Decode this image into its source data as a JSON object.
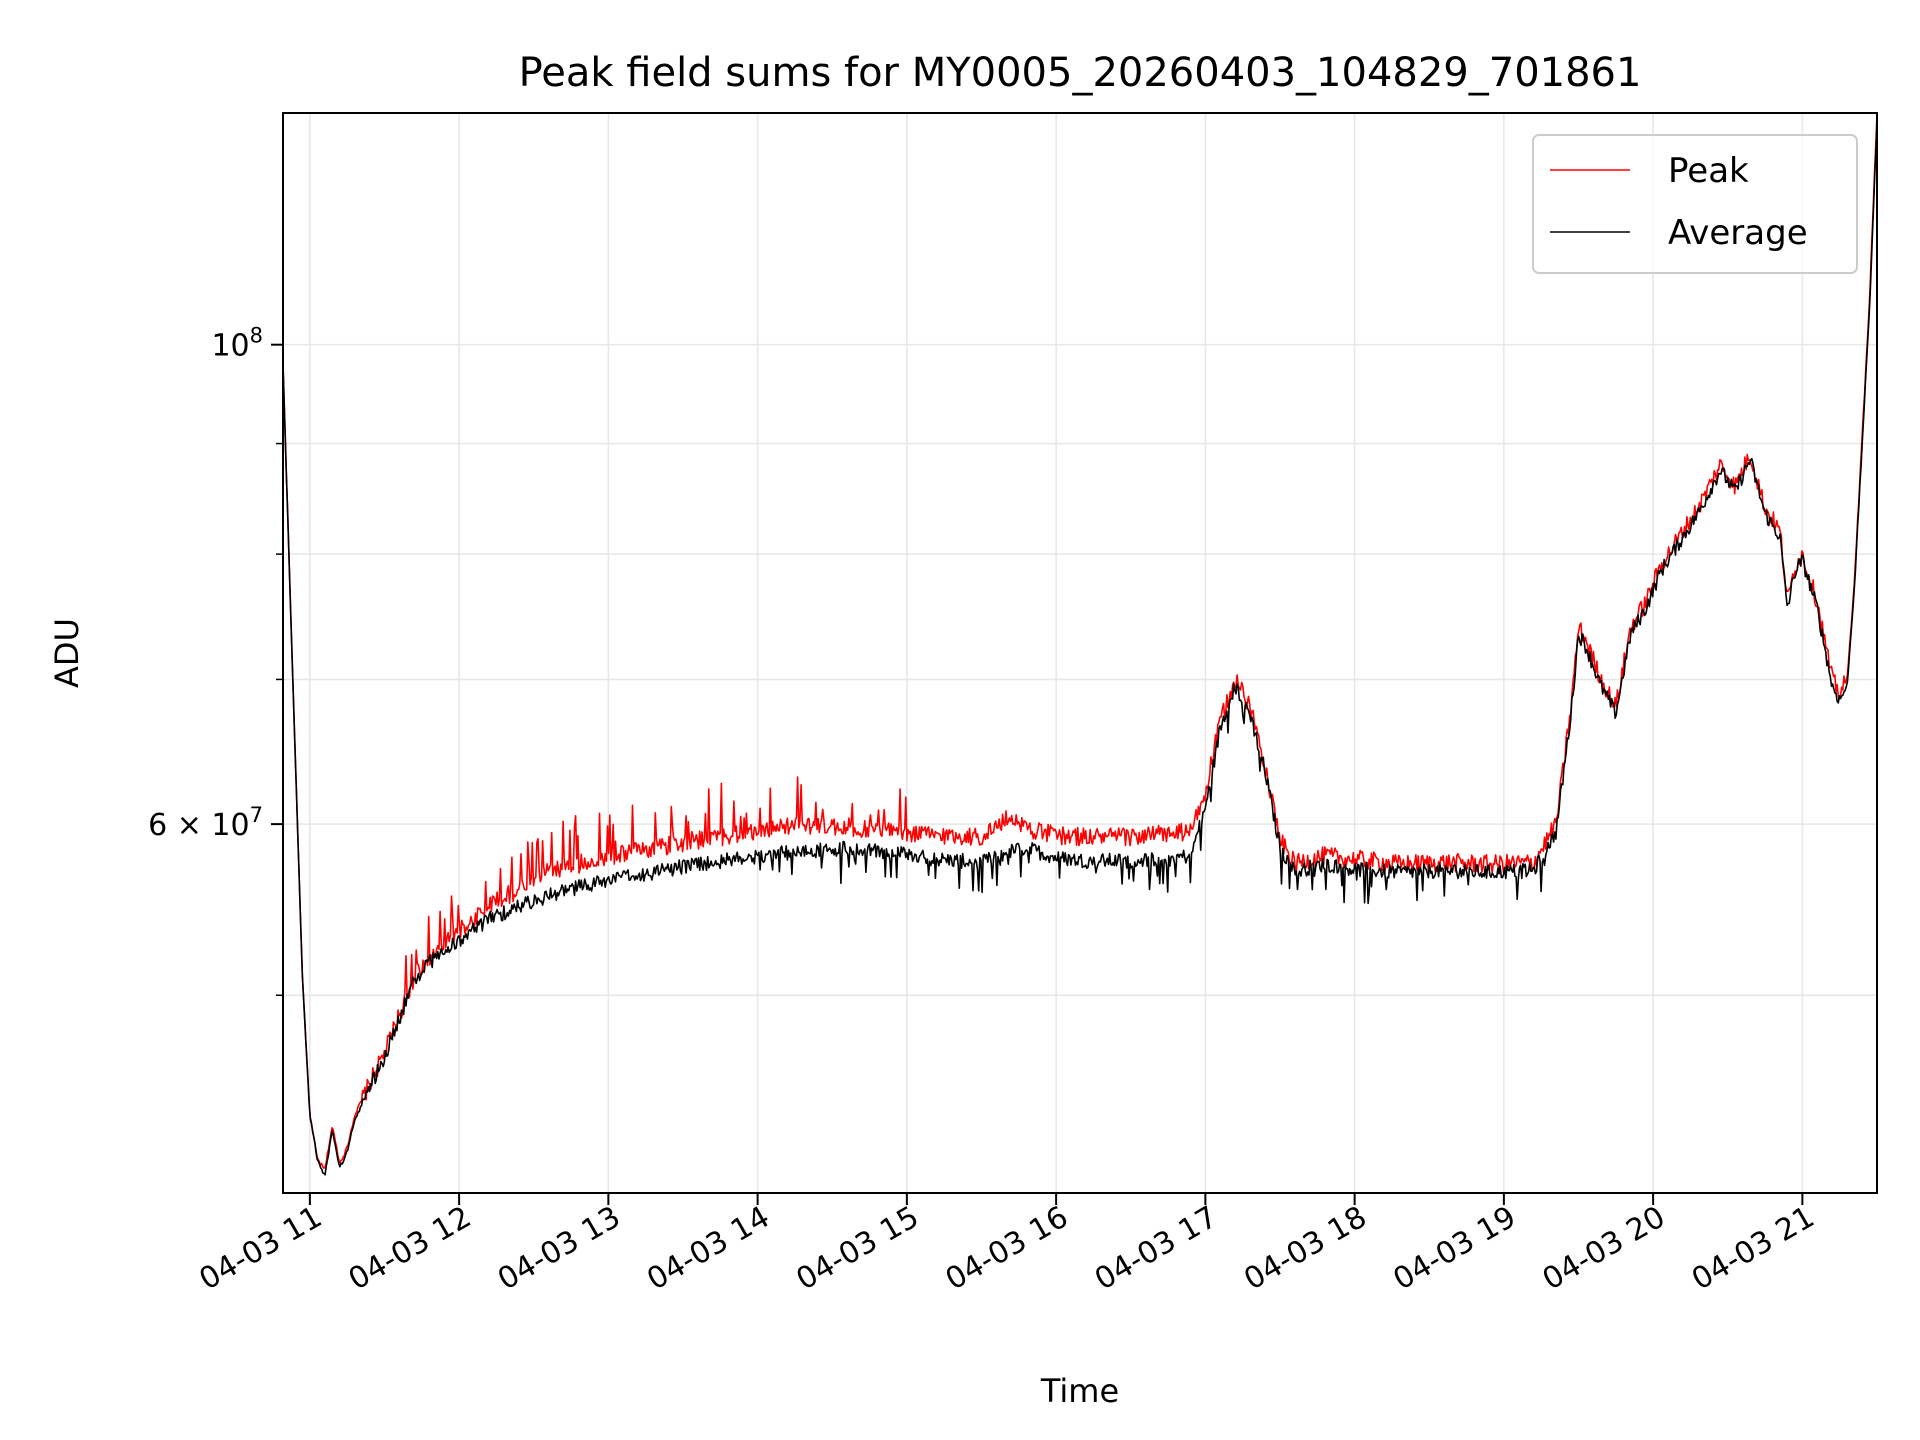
{
  "chart_data": {
    "type": "line",
    "title": "Peak field sums for MY0005_20260403_104829_701861",
    "xlabel": "Time",
    "ylabel": "ADU",
    "yscale": "log",
    "x_unit": "hour of day",
    "xlim": [
      "04-03 10:49",
      "04-03 21:30"
    ],
    "ylim": [
      40500000,
      128000000
    ],
    "x_tick_labels": [
      "04-03 11",
      "04-03 12",
      "04-03 13",
      "04-03 14",
      "04-03 15",
      "04-03 16",
      "04-03 17",
      "04-03 18",
      "04-03 19",
      "04-03 20",
      "04-03 21"
    ],
    "x_tick_hours": [
      11,
      12,
      13,
      14,
      15,
      16,
      17,
      18,
      19,
      20,
      21
    ],
    "y_tick_labels": [
      {
        "value": 100000000,
        "mantissa": "10",
        "exponent": "8"
      },
      {
        "value": 60000000,
        "mantissa": "6 × 10",
        "exponent": "7"
      }
    ],
    "y_minor_ticks": [
      50000000,
      70000000,
      80000000,
      90000000
    ],
    "grid": true,
    "legend_position": "top-right",
    "series": [
      {
        "name": "Peak",
        "color": "#ff0000",
        "x": [
          10.82,
          10.88,
          10.95,
          11.0,
          11.05,
          11.1,
          11.15,
          11.2,
          11.25,
          11.3,
          11.4,
          11.5,
          11.6,
          11.7,
          11.8,
          12.0,
          12.2,
          12.4,
          12.6,
          12.8,
          13.0,
          13.3,
          13.6,
          14.0,
          14.3,
          14.6,
          14.9,
          15.2,
          15.5,
          15.7,
          15.8,
          15.9,
          16.0,
          16.2,
          16.5,
          16.9,
          17.0,
          17.1,
          17.2,
          17.3,
          17.4,
          17.5,
          17.6,
          17.7,
          17.8,
          18.0,
          18.3,
          18.6,
          18.9,
          19.2,
          19.35,
          19.45,
          19.5,
          19.55,
          19.65,
          19.75,
          19.85,
          19.95,
          20.05,
          20.15,
          20.3,
          20.45,
          20.55,
          20.65,
          20.75,
          20.85,
          20.9,
          20.95,
          21.0,
          21.1,
          21.2,
          21.25,
          21.3,
          21.35,
          21.45,
          21.5
        ],
        "y": [
          98000000,
          72000000,
          51000000,
          44000000,
          42000000,
          41500000,
          43500000,
          41800000,
          42500000,
          44000000,
          45500000,
          47000000,
          49000000,
          51000000,
          52000000,
          53500000,
          55000000,
          56000000,
          57000000,
          57500000,
          58000000,
          58500000,
          59000000,
          59500000,
          60000000,
          59800000,
          59500000,
          59300000,
          59200000,
          60500000,
          59800000,
          59500000,
          59300000,
          59200000,
          59200000,
          59500000,
          62000000,
          67000000,
          70000000,
          68000000,
          64000000,
          59000000,
          57500000,
          57800000,
          58000000,
          57800000,
          57500000,
          57600000,
          57500000,
          57600000,
          60000000,
          68000000,
          74000000,
          73000000,
          70000000,
          68000000,
          74000000,
          76000000,
          79000000,
          81000000,
          84000000,
          88000000,
          86000000,
          89000000,
          84000000,
          82000000,
          76000000,
          79000000,
          80000000,
          76000000,
          70000000,
          69000000,
          70000000,
          78000000,
          105000000,
          128000000
        ]
      },
      {
        "name": "Average",
        "color": "#000000",
        "x": [
          10.82,
          10.88,
          10.95,
          11.0,
          11.05,
          11.1,
          11.15,
          11.2,
          11.25,
          11.3,
          11.4,
          11.5,
          11.6,
          11.7,
          11.8,
          12.0,
          12.2,
          12.4,
          12.6,
          12.8,
          13.0,
          13.3,
          13.6,
          14.0,
          14.3,
          14.6,
          14.9,
          15.2,
          15.5,
          15.7,
          15.8,
          15.9,
          16.0,
          16.2,
          16.5,
          16.9,
          17.0,
          17.1,
          17.2,
          17.3,
          17.4,
          17.5,
          17.6,
          17.7,
          17.8,
          18.0,
          18.3,
          18.6,
          18.9,
          19.2,
          19.35,
          19.45,
          19.5,
          19.55,
          19.65,
          19.75,
          19.85,
          19.95,
          20.05,
          20.15,
          20.3,
          20.45,
          20.55,
          20.65,
          20.75,
          20.85,
          20.9,
          20.95,
          21.0,
          21.1,
          21.2,
          21.25,
          21.3,
          21.35,
          21.45,
          21.5
        ],
        "y": [
          98000000,
          72000000,
          51000000,
          44000000,
          42000000,
          41200000,
          43300000,
          41600000,
          42300000,
          43800000,
          45300000,
          46800000,
          48800000,
          50800000,
          51800000,
          53000000,
          54200000,
          55000000,
          55600000,
          56100000,
          56500000,
          57000000,
          57500000,
          58000000,
          58300000,
          58500000,
          58200000,
          57800000,
          57600000,
          58300000,
          58500000,
          58200000,
          57900000,
          57700000,
          57700000,
          58000000,
          61000000,
          66500000,
          69500000,
          67500000,
          63500000,
          58500000,
          57000000,
          57300000,
          57500000,
          57200000,
          57000000,
          57100000,
          57000000,
          57100000,
          59500000,
          67500000,
          73500000,
          72500000,
          69500000,
          67500000,
          73500000,
          75500000,
          78500000,
          80500000,
          83500000,
          87500000,
          85500000,
          88500000,
          83500000,
          81500000,
          75500000,
          78500000,
          79500000,
          75500000,
          69500000,
          68500000,
          69500000,
          77500000,
          104000000,
          127000000
        ]
      }
    ]
  }
}
